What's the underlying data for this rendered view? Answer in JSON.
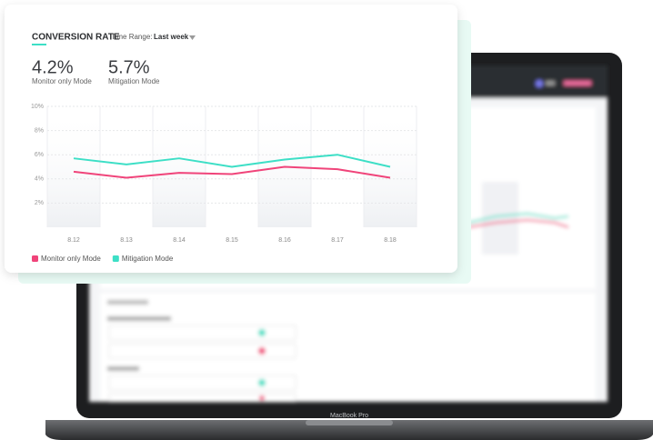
{
  "device_label": "MacBook Pro",
  "chart_data": {
    "type": "line",
    "title": "CONVERSION RATE",
    "time_range_label": "Time Range:",
    "time_range": "Last week",
    "categories": [
      "8.12",
      "8.13",
      "8.14",
      "8.15",
      "8.16",
      "8.17",
      "8.18"
    ],
    "series": [
      {
        "name": "Monitor only Mode",
        "color": "#f0447a",
        "summary": {
          "value": 4.2,
          "label": "4.2%"
        },
        "values": [
          4.6,
          4.1,
          4.5,
          4.4,
          5.0,
          4.8,
          4.1
        ]
      },
      {
        "name": "Mitigation Mode",
        "color": "#3ddfc6",
        "summary": {
          "value": 5.7,
          "label": "5.7%"
        },
        "values": [
          5.7,
          5.2,
          5.7,
          5.0,
          5.6,
          6.0,
          5.0
        ]
      }
    ],
    "ylim": [
      0,
      10
    ],
    "yticks": [
      {
        "value": 2,
        "label": "2%"
      },
      {
        "value": 4,
        "label": "4%"
      },
      {
        "value": 6,
        "label": "6%"
      },
      {
        "value": 8,
        "label": "8%"
      },
      {
        "value": 10,
        "label": "10%"
      }
    ],
    "grid": true
  }
}
